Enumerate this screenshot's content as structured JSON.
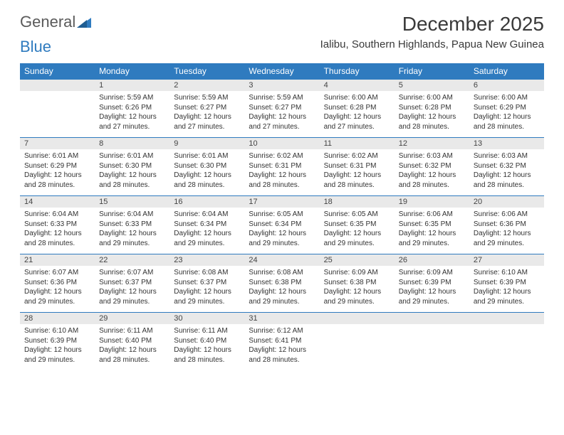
{
  "logo": {
    "word1": "General",
    "word2": "Blue"
  },
  "title": "December 2025",
  "location": "Ialibu, Southern Highlands, Papua New Guinea",
  "colors": {
    "brand_blue": "#2f7bbf",
    "header_bg": "#2f7bbf",
    "header_text": "#ffffff",
    "daynum_bg": "#e9e9e9",
    "text": "#333333",
    "logo_gray": "#5a5a5a"
  },
  "day_names": [
    "Sunday",
    "Monday",
    "Tuesday",
    "Wednesday",
    "Thursday",
    "Friday",
    "Saturday"
  ],
  "weeks": [
    [
      null,
      {
        "n": "1",
        "sr": "5:59 AM",
        "ss": "6:26 PM",
        "dl": "12 hours and 27 minutes."
      },
      {
        "n": "2",
        "sr": "5:59 AM",
        "ss": "6:27 PM",
        "dl": "12 hours and 27 minutes."
      },
      {
        "n": "3",
        "sr": "5:59 AM",
        "ss": "6:27 PM",
        "dl": "12 hours and 27 minutes."
      },
      {
        "n": "4",
        "sr": "6:00 AM",
        "ss": "6:28 PM",
        "dl": "12 hours and 27 minutes."
      },
      {
        "n": "5",
        "sr": "6:00 AM",
        "ss": "6:28 PM",
        "dl": "12 hours and 28 minutes."
      },
      {
        "n": "6",
        "sr": "6:00 AM",
        "ss": "6:29 PM",
        "dl": "12 hours and 28 minutes."
      }
    ],
    [
      {
        "n": "7",
        "sr": "6:01 AM",
        "ss": "6:29 PM",
        "dl": "12 hours and 28 minutes."
      },
      {
        "n": "8",
        "sr": "6:01 AM",
        "ss": "6:30 PM",
        "dl": "12 hours and 28 minutes."
      },
      {
        "n": "9",
        "sr": "6:01 AM",
        "ss": "6:30 PM",
        "dl": "12 hours and 28 minutes."
      },
      {
        "n": "10",
        "sr": "6:02 AM",
        "ss": "6:31 PM",
        "dl": "12 hours and 28 minutes."
      },
      {
        "n": "11",
        "sr": "6:02 AM",
        "ss": "6:31 PM",
        "dl": "12 hours and 28 minutes."
      },
      {
        "n": "12",
        "sr": "6:03 AM",
        "ss": "6:32 PM",
        "dl": "12 hours and 28 minutes."
      },
      {
        "n": "13",
        "sr": "6:03 AM",
        "ss": "6:32 PM",
        "dl": "12 hours and 28 minutes."
      }
    ],
    [
      {
        "n": "14",
        "sr": "6:04 AM",
        "ss": "6:33 PM",
        "dl": "12 hours and 28 minutes."
      },
      {
        "n": "15",
        "sr": "6:04 AM",
        "ss": "6:33 PM",
        "dl": "12 hours and 29 minutes."
      },
      {
        "n": "16",
        "sr": "6:04 AM",
        "ss": "6:34 PM",
        "dl": "12 hours and 29 minutes."
      },
      {
        "n": "17",
        "sr": "6:05 AM",
        "ss": "6:34 PM",
        "dl": "12 hours and 29 minutes."
      },
      {
        "n": "18",
        "sr": "6:05 AM",
        "ss": "6:35 PM",
        "dl": "12 hours and 29 minutes."
      },
      {
        "n": "19",
        "sr": "6:06 AM",
        "ss": "6:35 PM",
        "dl": "12 hours and 29 minutes."
      },
      {
        "n": "20",
        "sr": "6:06 AM",
        "ss": "6:36 PM",
        "dl": "12 hours and 29 minutes."
      }
    ],
    [
      {
        "n": "21",
        "sr": "6:07 AM",
        "ss": "6:36 PM",
        "dl": "12 hours and 29 minutes."
      },
      {
        "n": "22",
        "sr": "6:07 AM",
        "ss": "6:37 PM",
        "dl": "12 hours and 29 minutes."
      },
      {
        "n": "23",
        "sr": "6:08 AM",
        "ss": "6:37 PM",
        "dl": "12 hours and 29 minutes."
      },
      {
        "n": "24",
        "sr": "6:08 AM",
        "ss": "6:38 PM",
        "dl": "12 hours and 29 minutes."
      },
      {
        "n": "25",
        "sr": "6:09 AM",
        "ss": "6:38 PM",
        "dl": "12 hours and 29 minutes."
      },
      {
        "n": "26",
        "sr": "6:09 AM",
        "ss": "6:39 PM",
        "dl": "12 hours and 29 minutes."
      },
      {
        "n": "27",
        "sr": "6:10 AM",
        "ss": "6:39 PM",
        "dl": "12 hours and 29 minutes."
      }
    ],
    [
      {
        "n": "28",
        "sr": "6:10 AM",
        "ss": "6:39 PM",
        "dl": "12 hours and 29 minutes."
      },
      {
        "n": "29",
        "sr": "6:11 AM",
        "ss": "6:40 PM",
        "dl": "12 hours and 28 minutes."
      },
      {
        "n": "30",
        "sr": "6:11 AM",
        "ss": "6:40 PM",
        "dl": "12 hours and 28 minutes."
      },
      {
        "n": "31",
        "sr": "6:12 AM",
        "ss": "6:41 PM",
        "dl": "12 hours and 28 minutes."
      },
      null,
      null,
      null
    ]
  ],
  "labels": {
    "sunrise": "Sunrise:",
    "sunset": "Sunset:",
    "daylight": "Daylight:"
  },
  "typography": {
    "title_fontsize": 28,
    "location_fontsize": 15,
    "dayhead_fontsize": 12,
    "body_fontsize": 10
  }
}
